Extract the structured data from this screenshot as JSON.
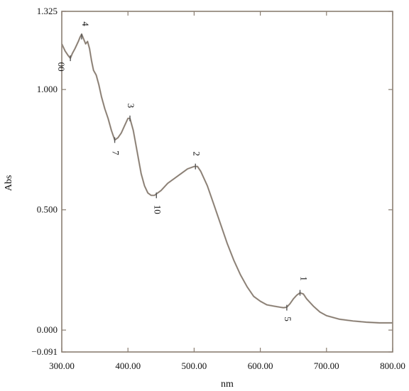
{
  "chart_data": {
    "type": "line",
    "title": "",
    "xlabel": "nm",
    "ylabel": "Abs",
    "xlim": [
      300,
      800
    ],
    "ylim": [
      -0.091,
      1.325
    ],
    "grid": false,
    "x_ticks": [
      300,
      400,
      500,
      600,
      700,
      800
    ],
    "x_tick_labels": [
      "300.00",
      "400.00",
      "500.00",
      "600.00",
      "700.00",
      "800.00"
    ],
    "y_ticks": [
      -0.091,
      0.0,
      0.5,
      1.0,
      1.325
    ],
    "y_tick_labels": [
      "−0.091",
      "0.000",
      "0.500",
      "1.000",
      "1.325"
    ],
    "series": [
      {
        "x": [
          300,
          305,
          310,
          313,
          316,
          320,
          325,
          328,
          330,
          333,
          336,
          339,
          342,
          345,
          348,
          352,
          356,
          360,
          365,
          370,
          375,
          380,
          385,
          390,
          395,
          400,
          403,
          408,
          412,
          416,
          420,
          425,
          430,
          435,
          440,
          445,
          450,
          460,
          470,
          480,
          490,
          500,
          505,
          510,
          520,
          530,
          540,
          550,
          560,
          570,
          580,
          590,
          600,
          610,
          620,
          630,
          635,
          640,
          645,
          650,
          655,
          660,
          665,
          670,
          680,
          690,
          700,
          720,
          740,
          760,
          780,
          800
        ],
        "y": [
          1.19,
          1.16,
          1.14,
          1.13,
          1.15,
          1.17,
          1.2,
          1.22,
          1.23,
          1.21,
          1.19,
          1.2,
          1.17,
          1.12,
          1.08,
          1.06,
          1.02,
          0.97,
          0.92,
          0.88,
          0.83,
          0.79,
          0.8,
          0.82,
          0.85,
          0.88,
          0.88,
          0.83,
          0.77,
          0.71,
          0.65,
          0.6,
          0.57,
          0.56,
          0.56,
          0.57,
          0.58,
          0.61,
          0.63,
          0.65,
          0.67,
          0.68,
          0.68,
          0.66,
          0.6,
          0.52,
          0.44,
          0.36,
          0.29,
          0.23,
          0.18,
          0.14,
          0.12,
          0.105,
          0.1,
          0.095,
          0.093,
          0.095,
          0.11,
          0.13,
          0.145,
          0.155,
          0.15,
          0.13,
          0.1,
          0.075,
          0.06,
          0.045,
          0.038,
          0.033,
          0.03,
          0.03
        ]
      }
    ],
    "peak_labels": [
      {
        "text": "4",
        "x": 330,
        "y": 1.23,
        "marker_y": 1.22
      },
      {
        "text": "00",
        "x": 313,
        "y": 1.13,
        "marker_y": 1.13
      },
      {
        "text": "3",
        "x": 403,
        "y": 0.88,
        "marker_y": 0.88
      },
      {
        "text": "7",
        "x": 380,
        "y": 0.79,
        "marker_y": 0.79
      },
      {
        "text": "2",
        "x": 502,
        "y": 0.68,
        "marker_y": 0.68
      },
      {
        "text": "10",
        "x": 443,
        "y": 0.56,
        "marker_y": 0.56
      },
      {
        "text": "5",
        "x": 640,
        "y": 0.093,
        "marker_y": 0.093
      },
      {
        "text": "1",
        "x": 660,
        "y": 0.155,
        "marker_y": 0.155
      }
    ]
  }
}
